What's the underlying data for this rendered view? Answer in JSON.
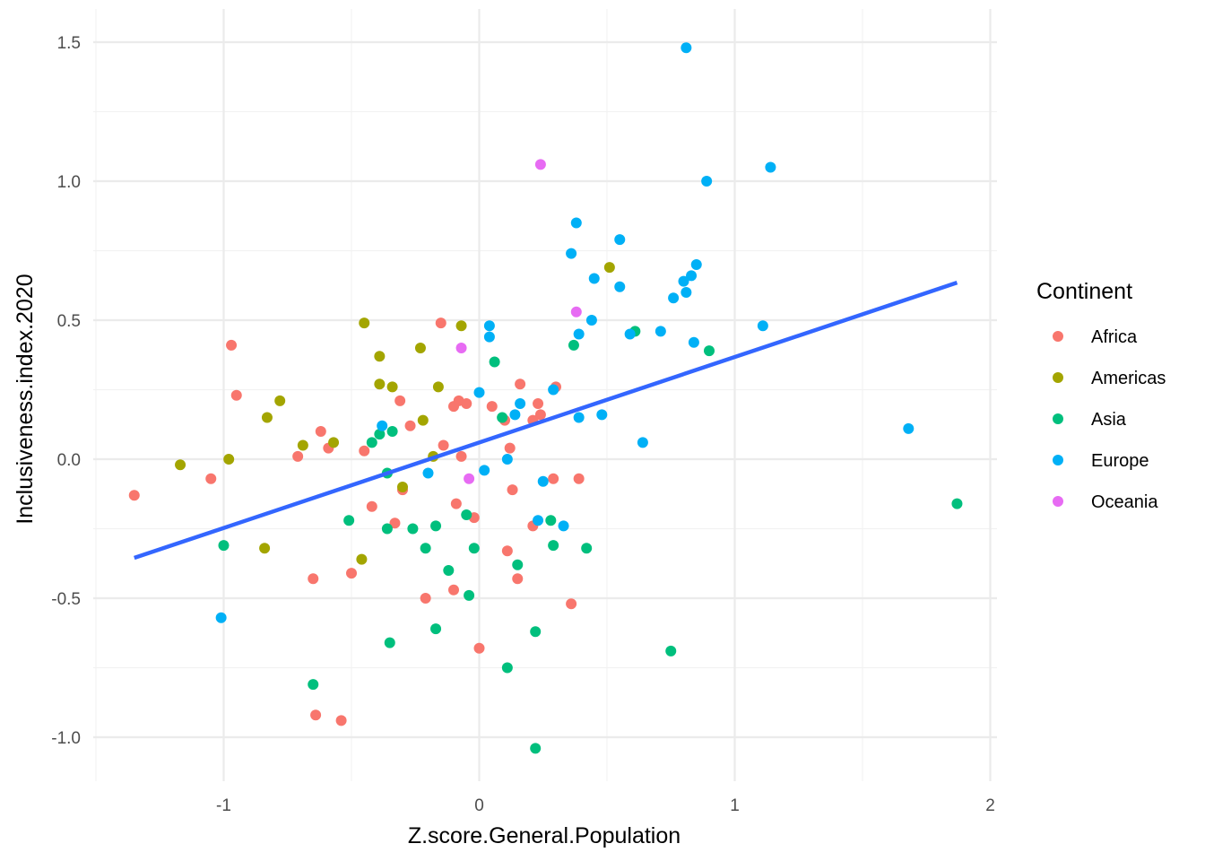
{
  "chart_data": {
    "type": "scatter",
    "xlabel": "Z.score.General.Population",
    "ylabel": "Inclusiveness.index.2020",
    "xlim": [
      -1.5,
      2.0
    ],
    "ylim": [
      -1.15,
      1.6
    ],
    "x_ticks": [
      -1,
      0,
      1,
      2
    ],
    "x_tick_labels": [
      "-1",
      "0",
      "1",
      "2"
    ],
    "y_ticks": [
      -1.0,
      -0.5,
      0.0,
      0.5,
      1.0,
      1.5
    ],
    "y_tick_labels": [
      "-1.0",
      "-0.5",
      "0.0",
      "0.5",
      "1.0",
      "1.5"
    ],
    "grid": true,
    "legend": {
      "title": "Continent",
      "position": "right"
    },
    "series": [
      {
        "name": "Africa",
        "color": "#F8766D",
        "points": [
          [
            -1.35,
            -0.13
          ],
          [
            -0.97,
            0.41
          ],
          [
            -0.95,
            0.23
          ],
          [
            -1.05,
            -0.07
          ],
          [
            -0.71,
            0.01
          ],
          [
            -0.62,
            0.1
          ],
          [
            -0.59,
            0.04
          ],
          [
            -0.45,
            0.03
          ],
          [
            -0.42,
            -0.17
          ],
          [
            -0.33,
            -0.23
          ],
          [
            -0.31,
            0.21
          ],
          [
            -0.3,
            -0.11
          ],
          [
            -0.27,
            0.12
          ],
          [
            -0.15,
            0.49
          ],
          [
            -0.14,
            0.05
          ],
          [
            -0.1,
            0.19
          ],
          [
            -0.08,
            0.21
          ],
          [
            -0.07,
            0.01
          ],
          [
            -0.05,
            0.2
          ],
          [
            -0.09,
            -0.16
          ],
          [
            -0.02,
            -0.21
          ],
          [
            -0.1,
            -0.47
          ],
          [
            -0.21,
            -0.5
          ],
          [
            -0.5,
            -0.41
          ],
          [
            -0.65,
            -0.43
          ],
          [
            -0.64,
            -0.92
          ],
          [
            -0.54,
            -0.94
          ],
          [
            0.0,
            -0.68
          ],
          [
            0.05,
            0.19
          ],
          [
            0.1,
            0.14
          ],
          [
            0.16,
            0.27
          ],
          [
            0.12,
            0.04
          ],
          [
            0.13,
            -0.11
          ],
          [
            0.11,
            -0.33
          ],
          [
            0.15,
            -0.43
          ],
          [
            0.21,
            0.14
          ],
          [
            0.23,
            0.2
          ],
          [
            0.24,
            0.16
          ],
          [
            0.3,
            0.26
          ],
          [
            0.29,
            -0.07
          ],
          [
            0.39,
            -0.07
          ],
          [
            0.21,
            -0.24
          ],
          [
            0.36,
            -0.52
          ]
        ]
      },
      {
        "name": "Americas",
        "color": "#A3A500",
        "points": [
          [
            -1.17,
            -0.02
          ],
          [
            -0.98,
            0.0
          ],
          [
            -0.84,
            -0.32
          ],
          [
            -0.83,
            0.15
          ],
          [
            -0.78,
            0.21
          ],
          [
            -0.69,
            0.05
          ],
          [
            -0.57,
            0.06
          ],
          [
            -0.45,
            0.49
          ],
          [
            -0.39,
            0.37
          ],
          [
            -0.39,
            0.27
          ],
          [
            -0.34,
            0.26
          ],
          [
            -0.46,
            -0.36
          ],
          [
            -0.3,
            -0.1
          ],
          [
            -0.23,
            0.4
          ],
          [
            -0.22,
            0.14
          ],
          [
            -0.18,
            0.01
          ],
          [
            -0.16,
            0.26
          ],
          [
            -0.07,
            0.48
          ],
          [
            0.51,
            0.69
          ]
        ]
      },
      {
        "name": "Asia",
        "color": "#00BF7D",
        "points": [
          [
            -1.0,
            -0.31
          ],
          [
            -0.65,
            -0.81
          ],
          [
            -0.51,
            -0.22
          ],
          [
            -0.42,
            0.06
          ],
          [
            -0.39,
            0.09
          ],
          [
            -0.36,
            -0.05
          ],
          [
            -0.36,
            -0.25
          ],
          [
            -0.34,
            0.1
          ],
          [
            -0.35,
            -0.66
          ],
          [
            -0.26,
            -0.25
          ],
          [
            -0.21,
            -0.32
          ],
          [
            -0.17,
            -0.24
          ],
          [
            -0.17,
            -0.61
          ],
          [
            -0.12,
            -0.4
          ],
          [
            -0.05,
            -0.2
          ],
          [
            -0.02,
            -0.32
          ],
          [
            -0.04,
            -0.49
          ],
          [
            0.06,
            0.35
          ],
          [
            0.09,
            0.15
          ],
          [
            0.11,
            -0.75
          ],
          [
            0.15,
            -0.38
          ],
          [
            0.22,
            -0.62
          ],
          [
            0.22,
            -1.04
          ],
          [
            0.28,
            -0.22
          ],
          [
            0.29,
            -0.31
          ],
          [
            0.42,
            -0.32
          ],
          [
            0.37,
            0.41
          ],
          [
            0.61,
            0.46
          ],
          [
            0.75,
            -0.69
          ],
          [
            0.9,
            0.39
          ],
          [
            1.87,
            -0.16
          ]
        ]
      },
      {
        "name": "Europe",
        "color": "#00B0F6",
        "points": [
          [
            -1.01,
            -0.57
          ],
          [
            -0.38,
            0.12
          ],
          [
            -0.2,
            -0.05
          ],
          [
            0.0,
            0.24
          ],
          [
            0.02,
            -0.04
          ],
          [
            0.04,
            0.44
          ],
          [
            0.04,
            0.48
          ],
          [
            0.11,
            0.0
          ],
          [
            0.14,
            0.16
          ],
          [
            0.16,
            0.2
          ],
          [
            0.23,
            -0.22
          ],
          [
            0.25,
            -0.08
          ],
          [
            0.29,
            0.25
          ],
          [
            0.33,
            -0.24
          ],
          [
            0.36,
            0.74
          ],
          [
            0.38,
            0.85
          ],
          [
            0.39,
            0.45
          ],
          [
            0.39,
            0.15
          ],
          [
            0.44,
            0.5
          ],
          [
            0.45,
            0.65
          ],
          [
            0.48,
            0.16
          ],
          [
            0.55,
            0.62
          ],
          [
            0.55,
            0.79
          ],
          [
            0.59,
            0.45
          ],
          [
            0.64,
            0.06
          ],
          [
            0.71,
            0.46
          ],
          [
            0.76,
            0.58
          ],
          [
            0.8,
            0.64
          ],
          [
            0.81,
            0.6
          ],
          [
            0.81,
            1.48
          ],
          [
            0.83,
            0.66
          ],
          [
            0.84,
            0.42
          ],
          [
            0.85,
            0.7
          ],
          [
            0.89,
            1.0
          ],
          [
            1.11,
            0.48
          ],
          [
            1.14,
            1.05
          ],
          [
            1.68,
            0.11
          ]
        ]
      },
      {
        "name": "Oceania",
        "color": "#E76BF3",
        "points": [
          [
            -0.07,
            0.4
          ],
          [
            -0.04,
            -0.07
          ],
          [
            0.24,
            1.06
          ],
          [
            0.38,
            0.53
          ]
        ]
      }
    ],
    "trend_line": {
      "color": "#3366FF",
      "x": [
        -1.35,
        1.87
      ],
      "y": [
        -0.355,
        0.635
      ]
    }
  }
}
